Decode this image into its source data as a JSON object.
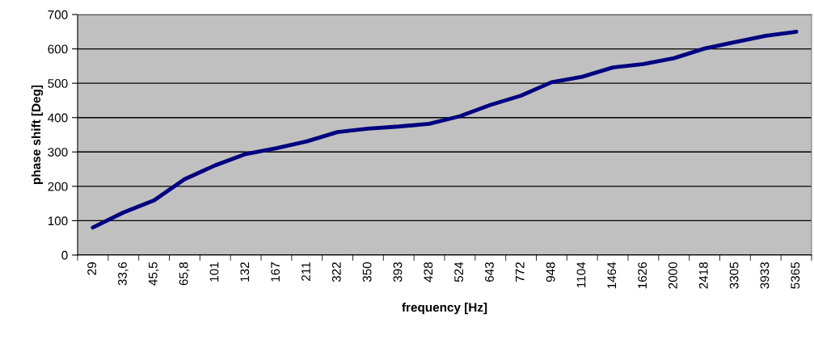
{
  "chart_data": {
    "type": "line",
    "xlabel": "frequency [Hz]",
    "ylabel": "phase shift [Deg]",
    "categories": [
      "29",
      "33,6",
      "45,5",
      "65,8",
      "101",
      "132",
      "167",
      "211",
      "322",
      "350",
      "393",
      "428",
      "524",
      "643",
      "772",
      "948",
      "1104",
      "1464",
      "1626",
      "2000",
      "2418",
      "3305",
      "3933",
      "5365"
    ],
    "series": [
      {
        "color": "#000080",
        "values": [
          80,
          124,
          159,
          221,
          261,
          294,
          311,
          331,
          358,
          368,
          374,
          382,
          404,
          437,
          464,
          503,
          519,
          546,
          556,
          573,
          601,
          620,
          638,
          650
        ]
      }
    ],
    "ylim": [
      0,
      700
    ],
    "yticks": [
      0,
      100,
      200,
      300,
      400,
      500,
      600,
      700
    ],
    "grid": "y",
    "marker": "none",
    "line_style": "solid",
    "legend": false
  }
}
